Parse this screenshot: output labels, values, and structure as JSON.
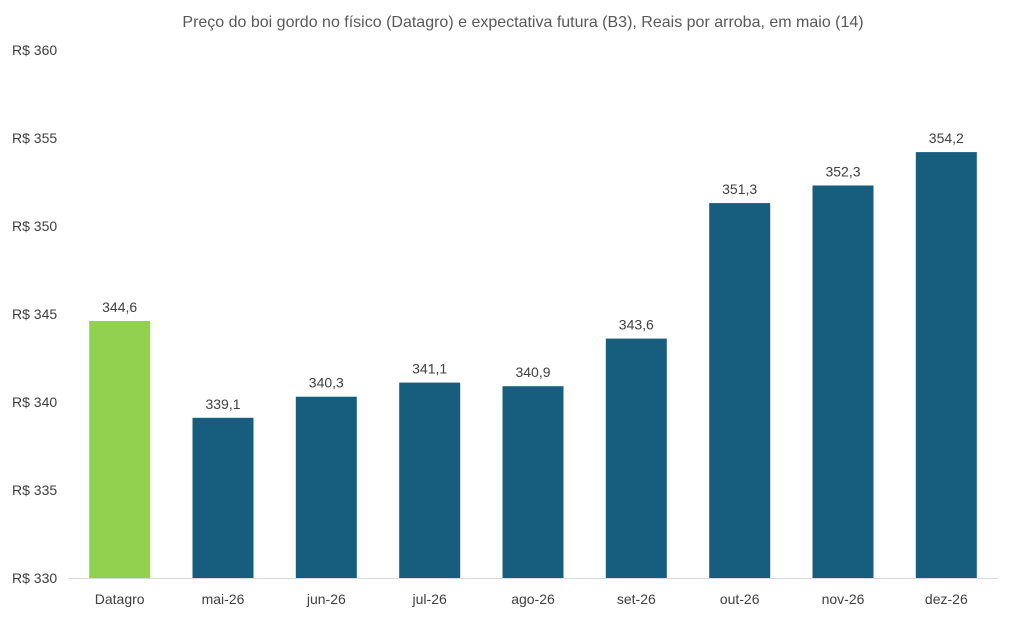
{
  "chart_data": {
    "type": "bar",
    "title": "Preço do boi gordo no físico (Datagro)  e expectativa futura (B3), Reais por arroba, em maio (14)",
    "xlabel": "",
    "ylabel": "",
    "categories": [
      "Datagro",
      "mai-26",
      "jun-26",
      "jul-26",
      "ago-26",
      "set-26",
      "out-26",
      "nov-26",
      "dez-26"
    ],
    "values": [
      344.6,
      339.1,
      340.3,
      341.1,
      340.9,
      343.6,
      351.3,
      352.3,
      354.2
    ],
    "value_labels": [
      "344,6",
      "339,1",
      "340,3",
      "341,1",
      "340,9",
      "343,6",
      "351,3",
      "352,3",
      "354,2"
    ],
    "ylim": [
      330,
      360
    ],
    "yticks": [
      330,
      335,
      340,
      345,
      350,
      355,
      360
    ],
    "ytick_labels": [
      "R$ 330",
      "R$ 335",
      "R$ 340",
      "R$ 345",
      "R$ 350",
      "R$ 355",
      "R$ 360"
    ],
    "grid": false,
    "legend": "none",
    "colors": {
      "highlight": "#92d050",
      "bars": "#175e7e",
      "text": "#404040",
      "axis": "#d9d9d9"
    }
  }
}
